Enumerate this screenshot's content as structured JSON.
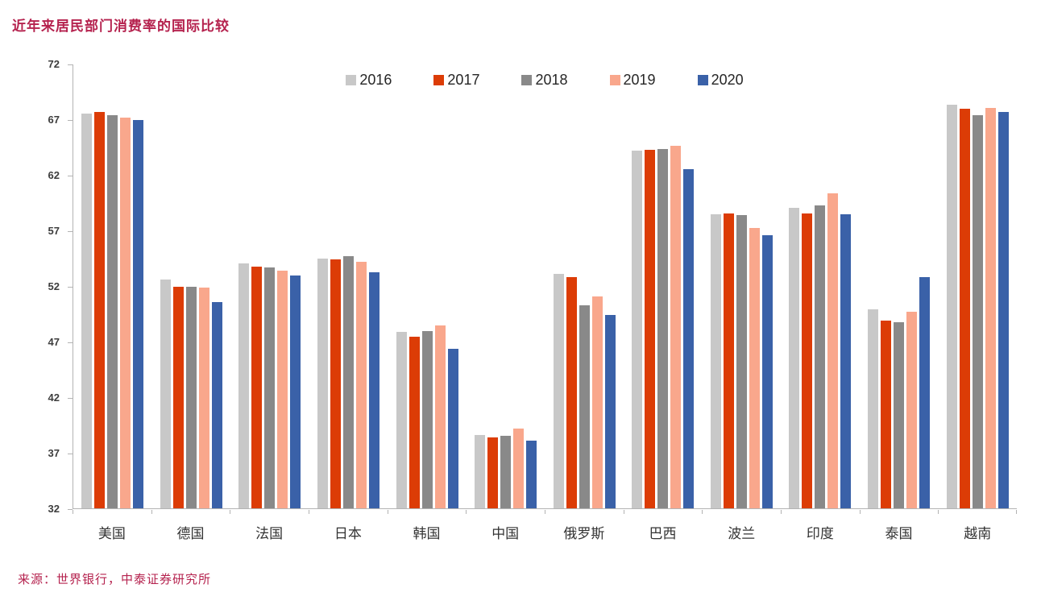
{
  "title": "近年来居民部门消费率的国际比较",
  "source": "来源：世界银行，中泰证券研究所",
  "colors": {
    "title_text": "#b5224e",
    "source_text": "#b5224e",
    "axis_line": "#b3b3b3",
    "tick_label_text": "#3d3d3d",
    "legend_text": "#262626",
    "category_text": "#333333"
  },
  "chart_data": {
    "type": "bar",
    "title": "近年来居民部门消费率的国际比较",
    "xlabel": "",
    "ylabel": "",
    "ylim": [
      32,
      72
    ],
    "yticks": [
      32,
      37,
      42,
      47,
      52,
      57,
      62,
      67,
      72
    ],
    "grid": false,
    "legend_position": "top-center",
    "categories": [
      "美国",
      "德国",
      "法国",
      "日本",
      "韩国",
      "中国",
      "俄罗斯",
      "巴西",
      "波兰",
      "印度",
      "泰国",
      "越南"
    ],
    "series": [
      {
        "name": "2016",
        "color": "#c8c8c8",
        "values": [
          67.6,
          52.6,
          54.1,
          54.5,
          47.9,
          38.6,
          53.1,
          64.2,
          58.5,
          59.1,
          49.9,
          68.4
        ]
      },
      {
        "name": "2017",
        "color": "#dc3c06",
        "values": [
          67.7,
          52.0,
          53.8,
          54.4,
          47.5,
          38.4,
          52.8,
          64.3,
          58.6,
          58.6,
          48.9,
          68.0
        ]
      },
      {
        "name": "2018",
        "color": "#898989",
        "values": [
          67.4,
          52.0,
          53.7,
          54.7,
          48.0,
          38.5,
          50.3,
          64.4,
          58.4,
          59.3,
          48.8,
          67.4
        ]
      },
      {
        "name": "2019",
        "color": "#f9a78c",
        "values": [
          67.2,
          51.9,
          53.4,
          54.2,
          48.5,
          39.2,
          51.1,
          64.7,
          57.3,
          60.4,
          49.7,
          68.1
        ]
      },
      {
        "name": "2020",
        "color": "#3a61a8",
        "values": [
          67.0,
          50.6,
          53.0,
          53.3,
          46.4,
          38.1,
          49.4,
          62.6,
          56.6,
          58.5,
          52.8,
          67.7
        ]
      }
    ]
  }
}
